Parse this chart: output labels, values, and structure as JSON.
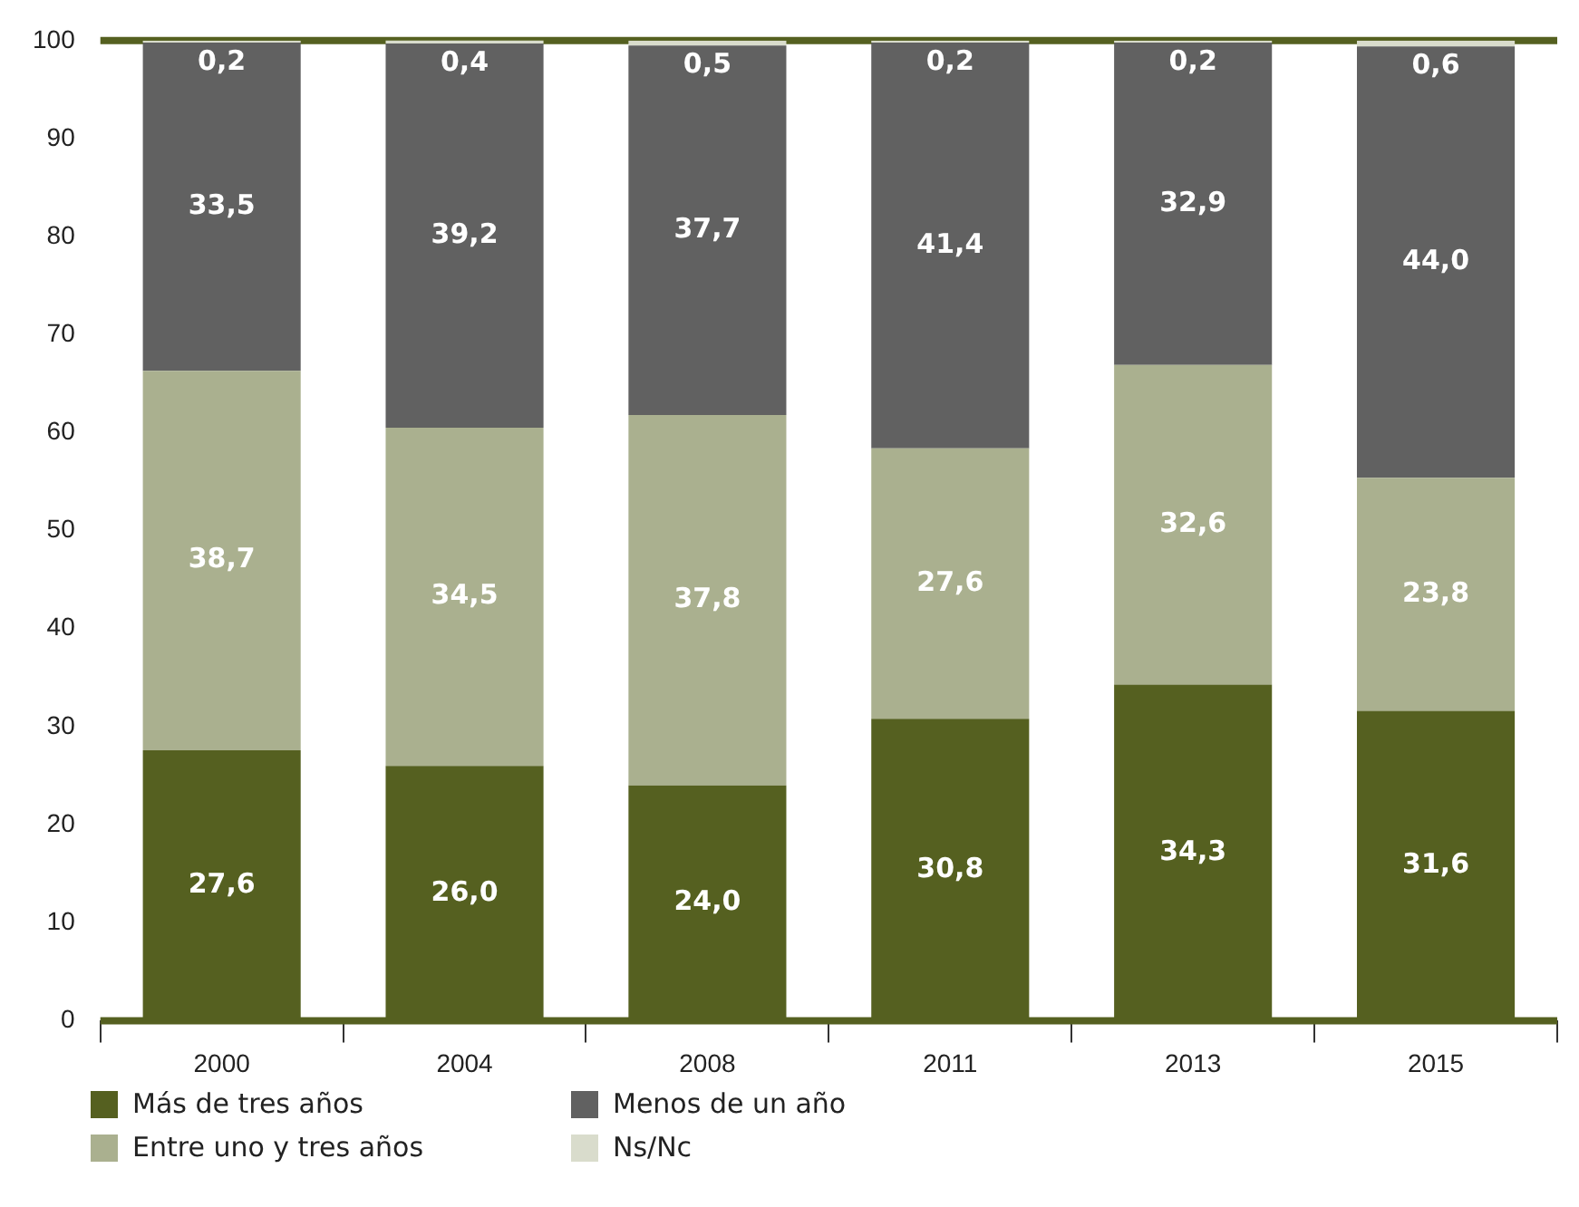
{
  "chart_data": {
    "type": "bar",
    "stacked": true,
    "categories": [
      "2000",
      "2004",
      "2008",
      "2011",
      "2013",
      "2015"
    ],
    "ylim": [
      0,
      100
    ],
    "yticks": [
      0,
      10,
      20,
      30,
      40,
      50,
      60,
      70,
      80,
      90,
      100
    ],
    "grid": false,
    "legend": "bottom",
    "series": [
      {
        "name": "Más de tres años",
        "color": "#556020",
        "values": [
          27.6,
          26.0,
          24.0,
          30.8,
          34.3,
          31.6
        ],
        "value_labels": [
          "27,6",
          "26,0",
          "24,0",
          "30,8",
          "34,3",
          "31,6"
        ]
      },
      {
        "name": "Entre uno y tres años",
        "color": "#aab08f",
        "values": [
          38.7,
          34.5,
          37.8,
          27.6,
          32.6,
          23.8
        ],
        "value_labels": [
          "38,7",
          "34,5",
          "37,8",
          "27,6",
          "32,6",
          "23,8"
        ]
      },
      {
        "name": "Menos de un año",
        "color": "#616161",
        "values": [
          33.5,
          39.2,
          37.7,
          41.4,
          32.9,
          44.0
        ],
        "value_labels": [
          "33,5",
          "39,2",
          "37,7",
          "41,4",
          "32,9",
          "44,0"
        ]
      },
      {
        "name": "Ns/Nc",
        "color": "#d9dccc",
        "values": [
          0.2,
          0.4,
          0.5,
          0.2,
          0.2,
          0.6
        ],
        "value_labels": [
          "0,2",
          "0,4",
          "0,5",
          "0,2",
          "0,2",
          "0,6"
        ]
      }
    ]
  }
}
